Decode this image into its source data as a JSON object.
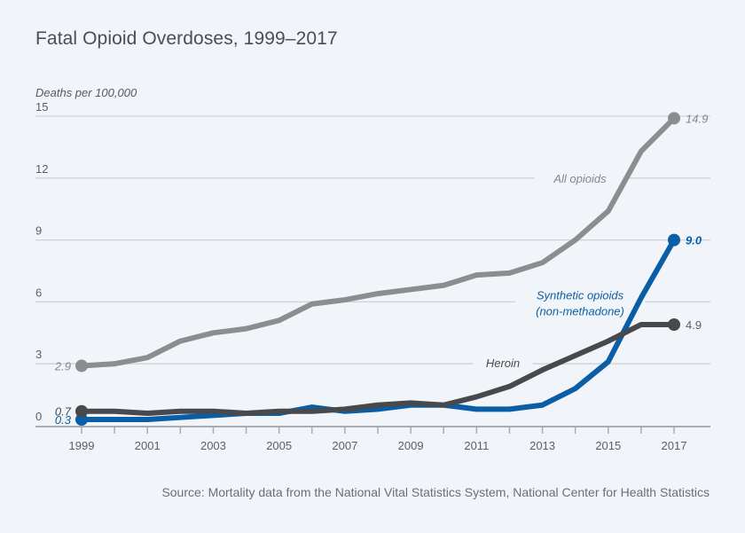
{
  "chart_data": {
    "type": "line",
    "title": "Fatal Opioid Overdoses, 1999–2017",
    "ylabel": "Deaths per 100,000",
    "xlabel": "",
    "source": "Source: Mortality data from the National Vital Statistics System, National Center for Health Statistics",
    "x": [
      1999,
      2000,
      2001,
      2002,
      2003,
      2004,
      2005,
      2006,
      2007,
      2008,
      2009,
      2010,
      2011,
      2012,
      2013,
      2014,
      2015,
      2016,
      2017
    ],
    "xticks": [
      "1999",
      "2001",
      "2003",
      "2005",
      "2007",
      "2009",
      "2011",
      "2013",
      "2015",
      "2017"
    ],
    "yticks": [
      "0",
      "3",
      "6",
      "9",
      "12",
      "15"
    ],
    "ylim": [
      0,
      15
    ],
    "xlim": [
      1999,
      2018
    ],
    "grid": true,
    "series": [
      {
        "name": "All opioids",
        "label": "All opioids",
        "color": "#8c8d90",
        "values": [
          2.9,
          3.0,
          3.3,
          4.1,
          4.5,
          4.7,
          5.1,
          5.9,
          6.1,
          6.4,
          6.6,
          6.8,
          7.3,
          7.4,
          7.9,
          9.0,
          10.4,
          13.3,
          14.9
        ],
        "start_label": "2.9",
        "end_label": "14.9"
      },
      {
        "name": "Synthetic opioids (non-methadone)",
        "label_lines": [
          "Synthetic opioids",
          "(non-methadone)"
        ],
        "color": "#0a5ea6",
        "values": [
          0.3,
          0.3,
          0.3,
          0.4,
          0.5,
          0.6,
          0.6,
          0.9,
          0.7,
          0.8,
          1.0,
          1.0,
          0.8,
          0.8,
          1.0,
          1.8,
          3.1,
          6.2,
          9.0
        ],
        "start_label": "0.3",
        "end_label": "9.0"
      },
      {
        "name": "Heroin",
        "label": "Heroin",
        "color": "#48494c",
        "values": [
          0.7,
          0.7,
          0.6,
          0.7,
          0.7,
          0.6,
          0.7,
          0.7,
          0.8,
          1.0,
          1.1,
          1.0,
          1.4,
          1.9,
          2.7,
          3.4,
          4.1,
          4.9,
          4.9
        ],
        "start_label": "0.7",
        "end_label": "4.9"
      }
    ]
  }
}
